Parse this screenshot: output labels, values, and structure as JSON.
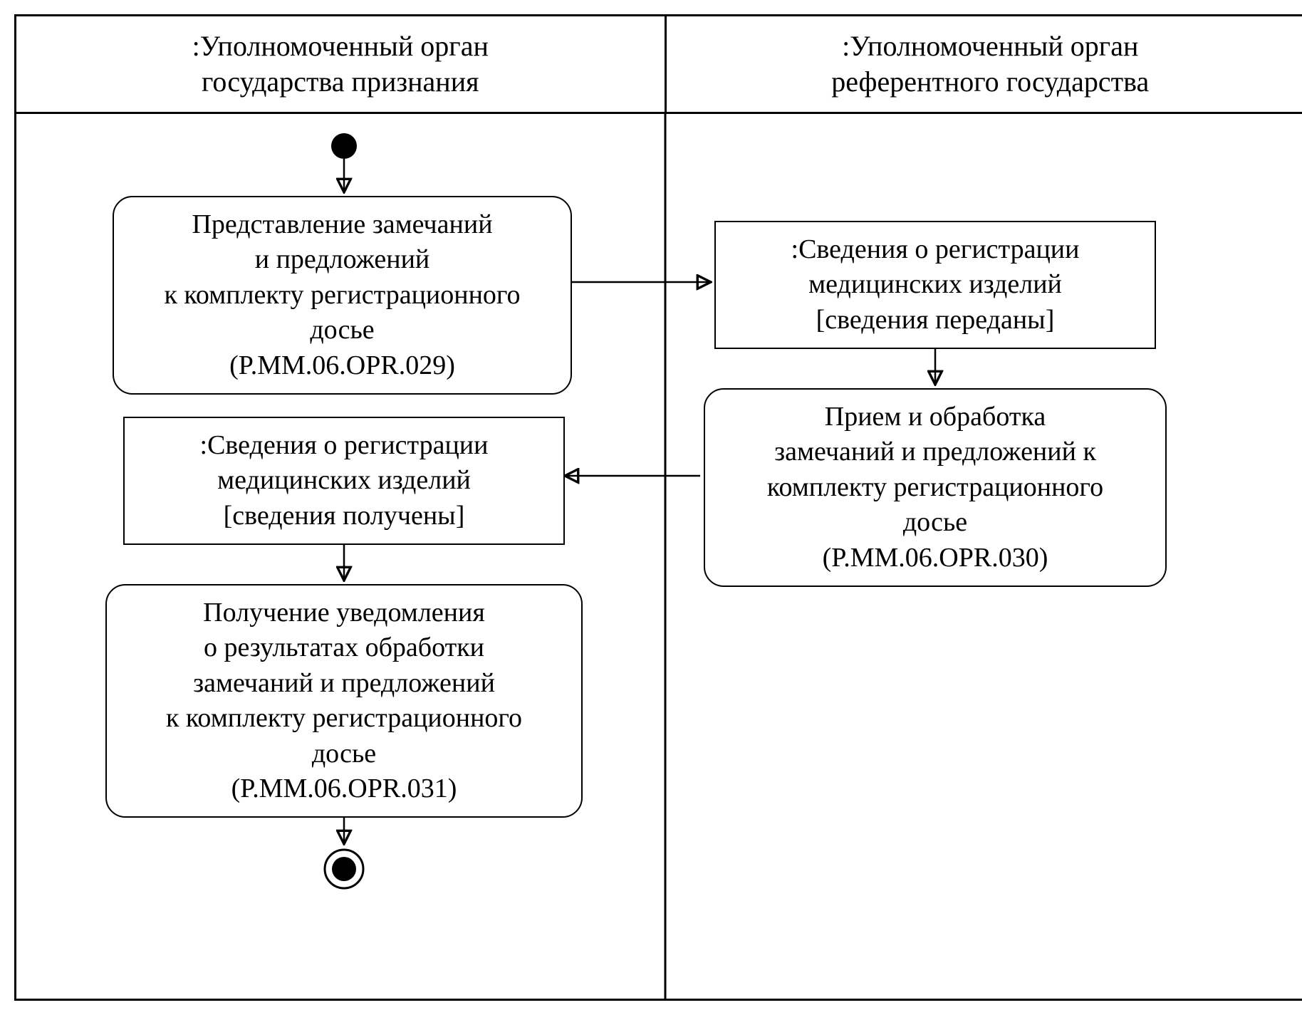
{
  "diagram": {
    "type": "flowchart",
    "background_color": "#ffffff",
    "border_color": "#000000",
    "border_width": 3,
    "font_family": "Times New Roman",
    "fontsize": 38,
    "header_fontsize": 40,
    "swimlanes": [
      {
        "title": ":Уполномоченный орган\nгосударства признания"
      },
      {
        "title": ":Уполномоченный орган\nреферентного государства"
      }
    ],
    "nodes": {
      "start": {
        "kind": "initial"
      },
      "opr029": {
        "kind": "activity",
        "lines": [
          "Представление замечаний",
          "и предложений",
          "к комплекту регистрационного",
          "досье",
          "(P.MM.06.OPR.029)"
        ]
      },
      "obj_sent": {
        "kind": "object",
        "lines": [
          ":Сведения о регистрации",
          "медицинских изделий",
          "[сведения переданы]"
        ]
      },
      "opr030": {
        "kind": "activity",
        "lines": [
          "Прием и обработка",
          "замечаний и предложений к",
          "комплекту регистрационного",
          "досье",
          "(P.MM.06.OPR.030)"
        ]
      },
      "obj_recv": {
        "kind": "object",
        "lines": [
          ":Сведения о регистрации",
          "медицинских изделий",
          "[сведения получены]"
        ]
      },
      "opr031": {
        "kind": "activity",
        "lines": [
          "Получение уведомления",
          "о результатах обработки",
          "замечаний и предложений",
          "к комплекту регистрационного",
          "досье",
          "(P.MM.06.OPR.031)"
        ]
      },
      "end": {
        "kind": "final"
      }
    }
  }
}
